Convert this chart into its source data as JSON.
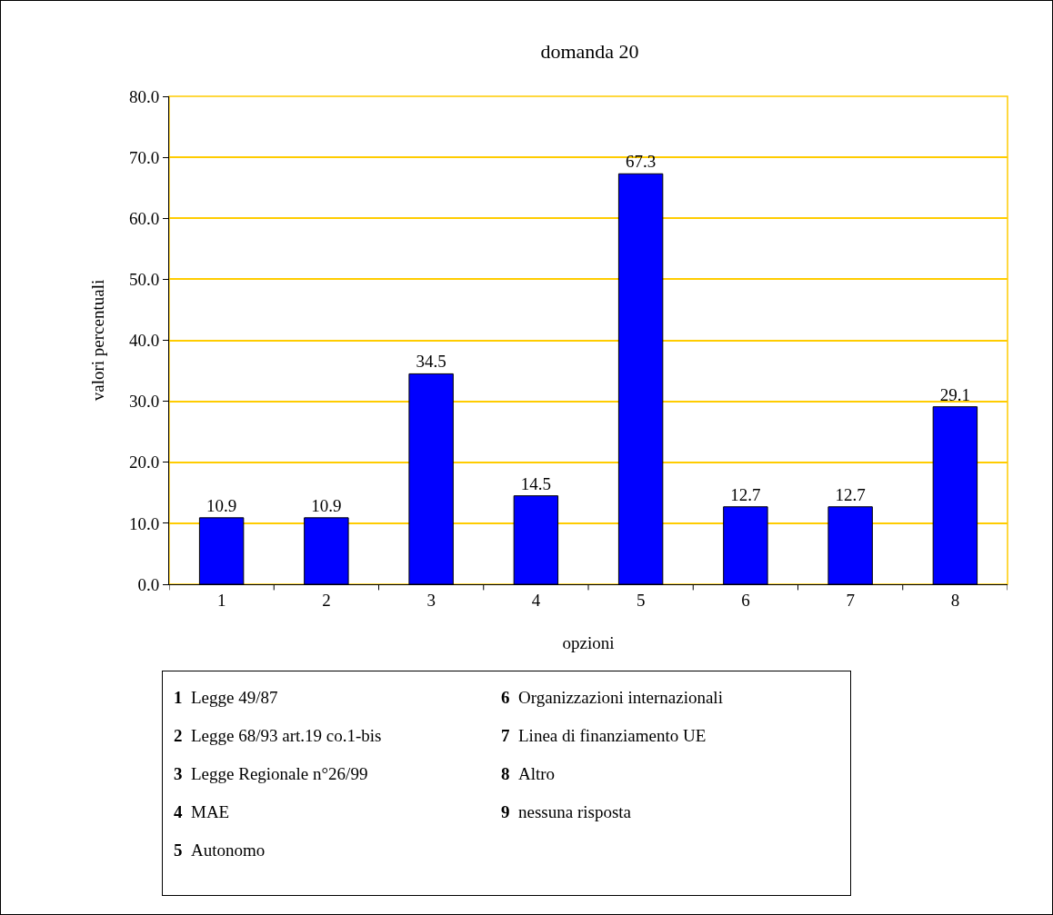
{
  "chart_data": {
    "type": "bar",
    "title": "domanda 20",
    "xlabel": "opzioni",
    "ylabel": "valori percentuali",
    "categories": [
      "1",
      "2",
      "3",
      "4",
      "5",
      "6",
      "7",
      "8"
    ],
    "values": [
      10.9,
      10.9,
      34.5,
      14.5,
      67.3,
      12.7,
      12.7,
      29.1
    ],
    "color": "#0000ff",
    "data_labels": true,
    "grid": "y",
    "ylim": [
      0,
      80
    ],
    "yticks": [
      {
        "value": 0,
        "label": "0.0"
      },
      {
        "value": 10,
        "label": "10.0"
      },
      {
        "value": 20,
        "label": "20.0"
      },
      {
        "value": 30,
        "label": "30.0"
      },
      {
        "value": 40,
        "label": "40.0"
      },
      {
        "value": 50,
        "label": "50.0"
      },
      {
        "value": 60,
        "label": "60.0"
      },
      {
        "value": 70,
        "label": "70.0"
      },
      {
        "value": 80,
        "label": "80.0"
      }
    ],
    "annotations": [
      "1 Legge 49/87",
      "2 Legge 68/93 art.19 co.1-bis",
      "3 Legge Regionale n°26/99",
      "4 MAE",
      "5 Autonomo",
      "6 Organizzazioni internazionali",
      "7 Linea di finanziamento UE",
      "8 Altro",
      "9 nessuna risposta"
    ]
  }
}
